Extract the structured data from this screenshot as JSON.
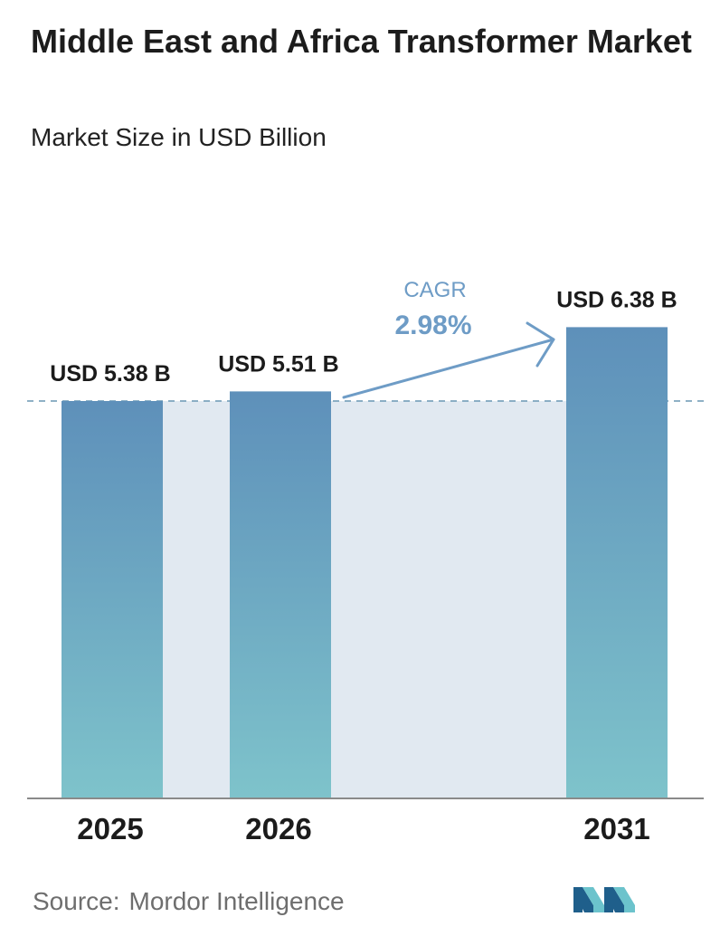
{
  "title": "Middle East and Africa Transformer Market",
  "subtitle": "Market Size in USD Billion",
  "chart_data": {
    "type": "bar",
    "categories": [
      "2025",
      "2026",
      "2031"
    ],
    "values": [
      5.38,
      5.51,
      6.38
    ],
    "value_labels": [
      "USD 5.38 B",
      "USD 5.51 B",
      "USD 6.38 B"
    ],
    "annotation": {
      "label": "CAGR",
      "value": "2.98%"
    },
    "reference_line_value": 5.38,
    "grid": false,
    "legend": "none"
  },
  "source": {
    "label": "Source:",
    "name": "Mordor Intelligence"
  },
  "colors": {
    "bar_top": "#5e90ba",
    "bar_bottom": "#7ec3cb",
    "band": "#e1e9f1",
    "arrow": "#6e9cc6",
    "dashed_line": "#6a97b4",
    "axis": "#8a8a8a",
    "logo_dark": "#1f5f8b",
    "logo_light": "#6cc3cc"
  }
}
